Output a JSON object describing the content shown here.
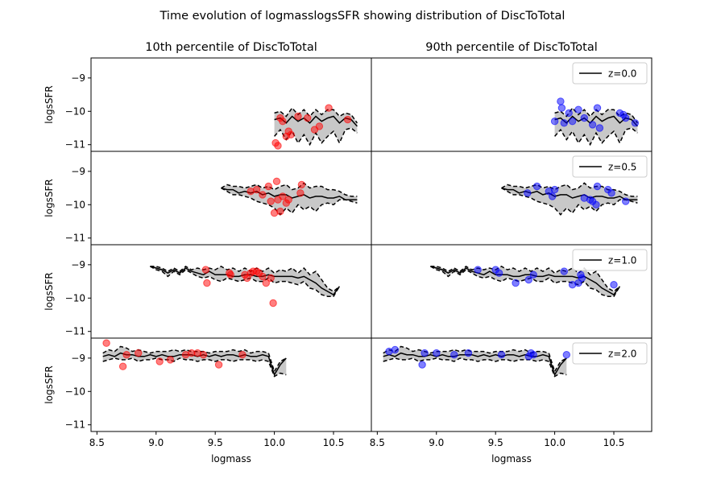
{
  "suptitle": "Time evolution of logmasslogsSFR showing distribution of DiscToTotal",
  "col_titles": [
    "10th percentile of DiscToTotal",
    "90th percentile of DiscToTotal"
  ],
  "xlabel": "logmass",
  "ylabel": "logsSFR",
  "colors": {
    "left_points": "#ff0000",
    "right_points": "#0000ff",
    "band": "#c8c8c8",
    "line": "#000000"
  },
  "chart_data": {
    "type": "scatter",
    "xlim": [
      8.45,
      10.82
    ],
    "ylim": [
      -11.2,
      -8.4
    ],
    "xticks": [
      8.5,
      9.0,
      9.5,
      10.0,
      10.5
    ],
    "xtick_labels": [
      "8.5",
      "9.0",
      "9.5",
      "10.0",
      "10.5"
    ],
    "yticks": [
      -9,
      -10,
      -11
    ],
    "ytick_labels": [
      "−9",
      "−10",
      "−11"
    ],
    "legend_position": "top-right",
    "rows": [
      {
        "legend": "z=0.0",
        "band": {
          "x": [
            10.0,
            10.05,
            10.1,
            10.15,
            10.2,
            10.25,
            10.3,
            10.35,
            10.4,
            10.45,
            10.5,
            10.55,
            10.6,
            10.65,
            10.7
          ],
          "median": [
            -10.25,
            -10.2,
            -10.35,
            -10.15,
            -10.3,
            -10.2,
            -10.35,
            -10.15,
            -10.3,
            -10.2,
            -10.15,
            -10.35,
            -10.2,
            -10.25,
            -10.45
          ],
          "upper": [
            -10.05,
            -10.0,
            -10.15,
            -9.9,
            -10.1,
            -9.95,
            -10.15,
            -9.95,
            -10.1,
            -9.95,
            -9.95,
            -10.15,
            -10.05,
            -10.1,
            -10.35
          ],
          "lower": [
            -10.75,
            -10.55,
            -10.85,
            -10.6,
            -10.95,
            -10.7,
            -11.0,
            -10.65,
            -10.95,
            -10.75,
            -10.6,
            -10.95,
            -10.55,
            -10.5,
            -10.65
          ]
        },
        "left_points": {
          "x": [
            10.01,
            10.03,
            10.05,
            10.07,
            10.1,
            10.12,
            10.14,
            10.2,
            10.28,
            10.34,
            10.38,
            10.46,
            10.62
          ],
          "y": [
            -10.95,
            -11.03,
            -10.2,
            -10.3,
            -10.75,
            -10.6,
            -10.7,
            -10.15,
            -10.2,
            -10.55,
            -10.45,
            -9.9,
            -10.25
          ]
        },
        "right_points": {
          "x": [
            10.0,
            10.05,
            10.06,
            10.08,
            10.12,
            10.15,
            10.2,
            10.25,
            10.32,
            10.36,
            10.38,
            10.55,
            10.58,
            10.6,
            10.68
          ],
          "y": [
            -10.3,
            -9.7,
            -9.9,
            -10.35,
            -10.05,
            -10.3,
            -9.95,
            -10.2,
            -10.4,
            -9.9,
            -10.5,
            -10.05,
            -10.1,
            -10.2,
            -10.35
          ]
        }
      },
      {
        "legend": "z=0.5",
        "band": {
          "x": [
            9.55,
            9.6,
            9.65,
            9.7,
            9.75,
            9.8,
            9.85,
            9.9,
            9.95,
            10.0,
            10.05,
            10.1,
            10.15,
            10.2,
            10.25,
            10.3,
            10.35,
            10.4,
            10.45,
            10.5,
            10.55,
            10.6,
            10.65,
            10.7
          ],
          "median": [
            -9.5,
            -9.55,
            -9.55,
            -9.65,
            -9.6,
            -9.65,
            -9.6,
            -9.7,
            -9.65,
            -9.75,
            -9.7,
            -9.7,
            -9.8,
            -9.75,
            -9.7,
            -9.8,
            -9.75,
            -9.75,
            -9.8,
            -9.8,
            -9.75,
            -9.85,
            -9.85,
            -9.85
          ],
          "upper": [
            -9.5,
            -9.4,
            -9.45,
            -9.45,
            -9.5,
            -9.45,
            -9.4,
            -9.5,
            -9.45,
            -9.55,
            -9.45,
            -9.4,
            -9.55,
            -9.5,
            -9.35,
            -9.5,
            -9.45,
            -9.45,
            -9.55,
            -9.55,
            -9.6,
            -9.7,
            -9.75,
            -9.75
          ],
          "lower": [
            -9.5,
            -9.6,
            -9.7,
            -9.7,
            -9.75,
            -9.8,
            -9.9,
            -9.95,
            -10.0,
            -10.1,
            -10.3,
            -10.1,
            -10.25,
            -10.0,
            -10.15,
            -10.05,
            -10.2,
            -10.0,
            -9.95,
            -10.0,
            -9.85,
            -9.85,
            -9.9,
            -9.95
          ]
        },
        "left_points": {
          "x": [
            9.8,
            9.85,
            9.9,
            9.95,
            9.97,
            10.0,
            10.02,
            10.03,
            10.05,
            10.07,
            10.1,
            10.12,
            10.22,
            10.23
          ],
          "y": [
            -9.6,
            -9.55,
            -9.7,
            -9.45,
            -9.9,
            -10.25,
            -9.3,
            -9.85,
            -10.2,
            -9.75,
            -9.95,
            -9.85,
            -9.65,
            -9.4
          ]
        },
        "right_points": {
          "x": [
            9.77,
            9.85,
            9.95,
            9.98,
            10.0,
            10.25,
            10.3,
            10.32,
            10.35,
            10.36,
            10.45,
            10.48,
            10.6
          ],
          "y": [
            -9.65,
            -9.45,
            -9.6,
            -9.75,
            -9.55,
            -9.8,
            -9.85,
            -9.9,
            -10.0,
            -9.45,
            -9.55,
            -9.65,
            -9.9
          ]
        }
      },
      {
        "legend": "z=1.0",
        "band": {
          "x": [
            8.95,
            9.0,
            9.05,
            9.1,
            9.15,
            9.2,
            9.25,
            9.3,
            9.35,
            9.4,
            9.45,
            9.5,
            9.55,
            9.6,
            9.65,
            9.7,
            9.75,
            9.8,
            9.85,
            9.9,
            9.95,
            10.0,
            10.05,
            10.1,
            10.15,
            10.2,
            10.25,
            10.3,
            10.35,
            10.4,
            10.45,
            10.5,
            10.55
          ],
          "median": [
            -9.05,
            -9.1,
            -9.15,
            -9.25,
            -9.15,
            -9.25,
            -9.1,
            -9.2,
            -9.25,
            -9.3,
            -9.2,
            -9.3,
            -9.3,
            -9.3,
            -9.35,
            -9.35,
            -9.3,
            -9.3,
            -9.35,
            -9.35,
            -9.3,
            -9.35,
            -9.35,
            -9.35,
            -9.35,
            -9.4,
            -9.35,
            -9.45,
            -9.55,
            -9.7,
            -9.8,
            -9.9,
            -9.65
          ],
          "upper": [
            -9.05,
            -9.05,
            -9.1,
            -9.2,
            -9.1,
            -9.2,
            -9.05,
            -9.15,
            -9.1,
            -9.15,
            -9.1,
            -9.15,
            -9.05,
            -9.15,
            -9.1,
            -9.2,
            -9.1,
            -9.2,
            -9.1,
            -9.2,
            -9.1,
            -9.25,
            -9.15,
            -9.2,
            -9.1,
            -9.25,
            -9.1,
            -9.3,
            -9.2,
            -9.45,
            -9.7,
            -9.8,
            -9.65
          ],
          "lower": [
            -9.05,
            -9.15,
            -9.2,
            -9.35,
            -9.2,
            -9.3,
            -9.15,
            -9.25,
            -9.35,
            -9.4,
            -9.35,
            -9.45,
            -9.5,
            -9.4,
            -9.45,
            -9.5,
            -9.45,
            -9.4,
            -9.5,
            -9.5,
            -9.4,
            -9.55,
            -9.5,
            -9.5,
            -9.55,
            -9.6,
            -9.5,
            -9.7,
            -9.75,
            -9.9,
            -9.95,
            -9.95,
            -9.65
          ]
        },
        "left_points": {
          "x": [
            9.42,
            9.43,
            9.62,
            9.63,
            9.75,
            9.77,
            9.8,
            9.82,
            9.85,
            9.87,
            9.9,
            9.93,
            9.97,
            9.99
          ],
          "y": [
            -9.15,
            -9.55,
            -9.25,
            -9.3,
            -9.3,
            -9.4,
            -9.25,
            -9.2,
            -9.2,
            -9.25,
            -9.35,
            -9.55,
            -9.4,
            -10.15
          ]
        },
        "right_points": {
          "x": [
            9.35,
            9.5,
            9.53,
            9.67,
            9.78,
            9.82,
            10.08,
            10.15,
            10.2,
            10.22,
            10.23,
            10.5
          ],
          "y": [
            -9.15,
            -9.15,
            -9.25,
            -9.55,
            -9.45,
            -9.3,
            -9.2,
            -9.6,
            -9.55,
            -9.3,
            -9.4,
            -9.6
          ]
        }
      },
      {
        "legend": "z=2.0",
        "band": {
          "x": [
            8.55,
            8.6,
            8.65,
            8.7,
            8.75,
            8.8,
            8.85,
            8.9,
            8.95,
            9.0,
            9.05,
            9.1,
            9.15,
            9.2,
            9.25,
            9.3,
            9.35,
            9.4,
            9.45,
            9.5,
            9.55,
            9.6,
            9.65,
            9.7,
            9.75,
            9.8,
            9.85,
            9.9,
            9.95,
            10.0,
            10.05,
            10.1
          ],
          "median": [
            -8.95,
            -8.9,
            -8.95,
            -8.85,
            -8.9,
            -8.9,
            -8.95,
            -8.95,
            -8.9,
            -8.95,
            -8.9,
            -8.95,
            -8.95,
            -8.9,
            -8.9,
            -8.9,
            -8.95,
            -8.9,
            -8.95,
            -8.9,
            -8.95,
            -8.9,
            -8.9,
            -8.95,
            -8.9,
            -8.95,
            -8.95,
            -8.9,
            -8.95,
            -9.5,
            -9.2,
            -9.0
          ],
          "upper": [
            -8.85,
            -8.75,
            -8.8,
            -8.65,
            -8.7,
            -8.8,
            -8.75,
            -8.8,
            -8.85,
            -8.8,
            -8.8,
            -8.8,
            -8.75,
            -8.8,
            -8.75,
            -8.8,
            -8.8,
            -8.8,
            -8.85,
            -8.8,
            -8.8,
            -8.8,
            -8.75,
            -8.8,
            -8.75,
            -8.85,
            -8.8,
            -8.8,
            -8.85,
            -9.4,
            -9.1,
            -9.0
          ],
          "lower": [
            -9.1,
            -9.05,
            -9.0,
            -9.05,
            -9.05,
            -9.0,
            -9.1,
            -9.05,
            -9.05,
            -9.0,
            -9.05,
            -9.05,
            -9.1,
            -9.0,
            -9.05,
            -9.05,
            -9.1,
            -9.05,
            -9.05,
            -9.1,
            -9.05,
            -9.05,
            -9.1,
            -9.05,
            -9.05,
            -9.05,
            -9.1,
            -9.05,
            -9.1,
            -9.55,
            -9.45,
            -9.5
          ]
        },
        "left_points": {
          "x": [
            8.58,
            8.72,
            8.75,
            8.85,
            9.03,
            9.12,
            9.25,
            9.3,
            9.35,
            9.4,
            9.53,
            9.73
          ],
          "y": [
            -8.55,
            -9.25,
            -8.9,
            -8.85,
            -9.1,
            -9.05,
            -8.9,
            -8.85,
            -8.85,
            -8.9,
            -9.2,
            -8.9
          ]
        },
        "right_points": {
          "x": [
            8.6,
            8.65,
            8.88,
            8.9,
            9.0,
            9.15,
            9.27,
            9.55,
            9.78,
            9.8,
            9.82,
            10.1
          ],
          "y": [
            -8.8,
            -8.75,
            -9.2,
            -8.85,
            -8.85,
            -8.9,
            -8.85,
            -8.9,
            -8.95,
            -8.85,
            -8.9,
            -8.9
          ]
        }
      }
    ]
  }
}
